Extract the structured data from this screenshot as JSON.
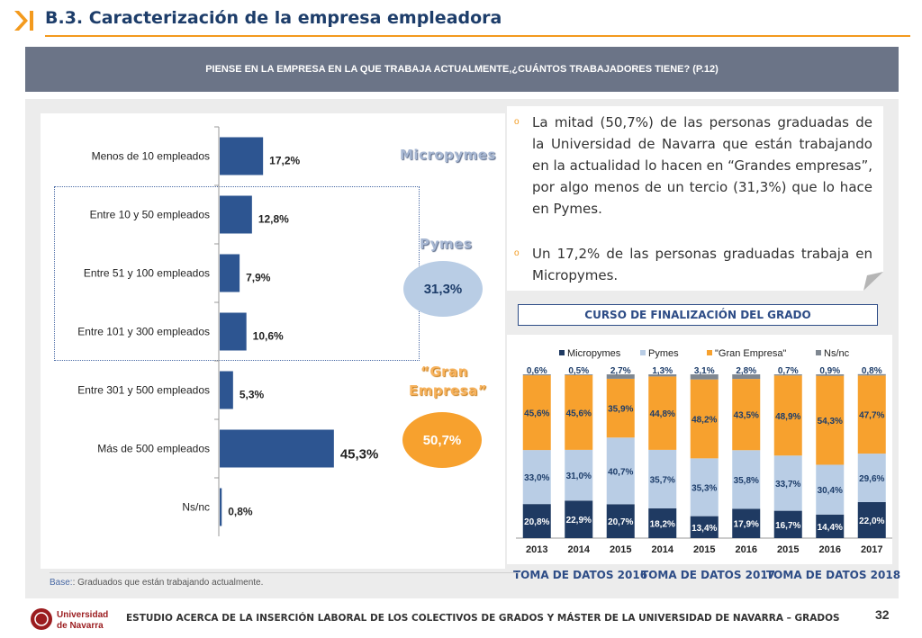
{
  "header": {
    "title": "B.3. Caracterización de la empresa empleadora",
    "question": "PIENSE EN LA EMPRESA EN LA QUE TRABAJA ACTUALMENTE,¿CUÁNTOS TRABAJADORES TIENE? (P.12)"
  },
  "colors": {
    "accent_orange": "#f39a1e",
    "navy": "#1d3d6a",
    "bar_blue": "#2d5591",
    "micropymes": "#1f3a62",
    "pymes": "#b9cde5",
    "gran_empresa": "#f7a12e",
    "nsnc": "#7f8791"
  },
  "bullets": [
    "La mitad (50,7%) de las personas graduadas de la Universidad de Navarra que están trabajando en la actualidad lo hacen en “Grandes empresas”, por algo menos de un tercio (31,3%) que lo hace en Pymes.",
    "Un 17,2% de las personas graduadas trabaja en Micropymes."
  ],
  "groups": {
    "micropymes": "Micropymes",
    "pymes": "Pymes",
    "pymes_value": "31,3%",
    "gran_empresa_line1": "“Gran",
    "gran_empresa_line2": "Empresa”",
    "gran_empresa_value": "50,7%"
  },
  "course_title": "CURSO DE FINALIZACIÓN DEL GRADO",
  "periods": [
    "TOMA DE DATOS 2016",
    "TOMA DE DATOS 2017",
    "TOMA DE DATOS 2018"
  ],
  "base_note": {
    "key": "Base:",
    "text": ": Graduados que están trabajando actualmente."
  },
  "footer": {
    "logo_line1": "Universidad",
    "logo_line2": "de Navarra",
    "text": "ESTUDIO ACERCA DE LA INSERCIÓN LABORAL DE LOS COLECTIVOS DE GRADOS Y MÁSTER DE LA UNIVERSIDAD DE NAVARRA – GRADOS",
    "page": "32"
  },
  "chart_data": [
    {
      "type": "bar",
      "orientation": "horizontal",
      "categories": [
        "Menos de 10 empleados",
        "Entre 10 y 50 empleados",
        "Entre 51 y 100 empleados",
        "Entre 101 y 300 empleados",
        "Entre 301 y 500 empleados",
        "Más de 500 empleados",
        "Ns/nc"
      ],
      "values": [
        17.2,
        12.8,
        7.9,
        10.6,
        5.3,
        45.3,
        0.8
      ],
      "labels": [
        "17,2%",
        "12,8%",
        "7,9%",
        "10,6%",
        "5,3%",
        "45,3%",
        "0,8%"
      ],
      "xlim": [
        0,
        50
      ]
    },
    {
      "type": "bar",
      "stacked": true,
      "title": "CURSO DE FINALIZACIÓN DEL GRADO",
      "categories": [
        "2013",
        "2014",
        "2015",
        "2014",
        "2015",
        "2016",
        "2015",
        "2016",
        "2017"
      ],
      "legend_position": "top",
      "ylim": [
        0,
        100
      ],
      "series": [
        {
          "name": "Micropymes",
          "values": [
            20.8,
            22.9,
            20.7,
            18.2,
            13.4,
            17.9,
            16.7,
            14.4,
            22.0
          ],
          "labels": [
            "20,8%",
            "22,9%",
            "20,7%",
            "18,2%",
            "13,4%",
            "17,9%",
            "16,7%",
            "14,4%",
            "22,0%"
          ]
        },
        {
          "name": "Pymes",
          "values": [
            33.0,
            31.0,
            40.7,
            35.7,
            35.3,
            35.8,
            33.7,
            30.4,
            29.6
          ],
          "labels": [
            "33,0%",
            "31,0%",
            "40,7%",
            "35,7%",
            "35,3%",
            "35,8%",
            "33,7%",
            "30,4%",
            "29,6%"
          ]
        },
        {
          "name": "\"Gran Empresa\"",
          "values": [
            45.6,
            45.6,
            35.9,
            44.8,
            48.2,
            43.5,
            48.9,
            54.3,
            47.7
          ],
          "labels": [
            "45,6%",
            "45,6%",
            "35,9%",
            "44,8%",
            "48,2%",
            "43,5%",
            "48,9%",
            "54,3%",
            "47,7%"
          ]
        },
        {
          "name": "Ns/nc",
          "values": [
            0.6,
            0.5,
            2.7,
            1.3,
            3.1,
            2.8,
            0.7,
            0.9,
            0.8
          ],
          "labels": [
            "0,6%",
            "0,5%",
            "2,7%",
            "1,3%",
            "3,1%",
            "2,8%",
            "0,7%",
            "0,9%",
            "0,8%"
          ]
        }
      ]
    }
  ]
}
